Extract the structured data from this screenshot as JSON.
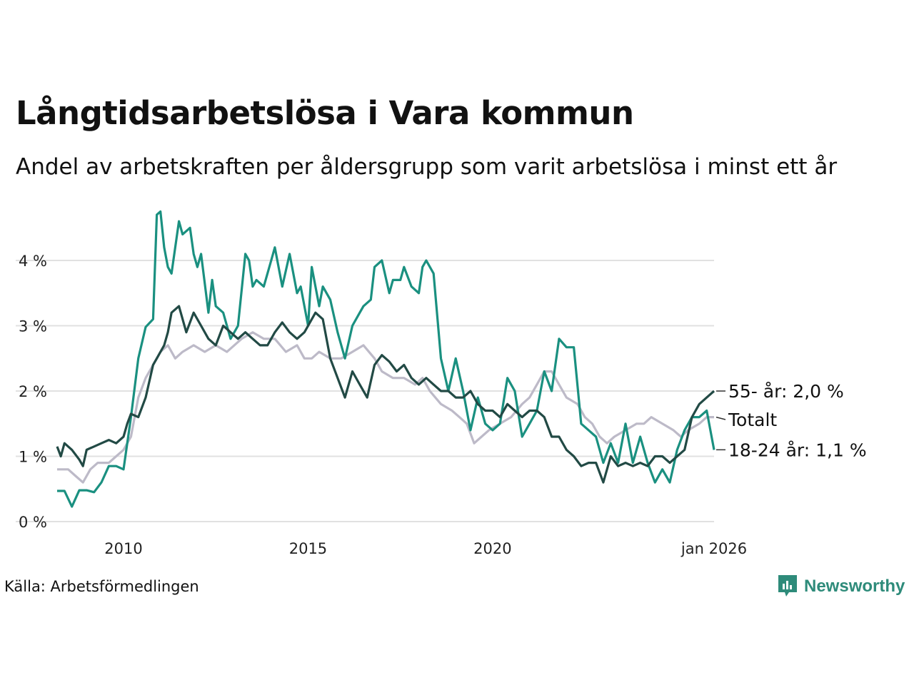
{
  "header": {
    "title": "Långtidsarbetslösa i Vara kommun",
    "subtitle": "Andel av arbetskraften per åldersgrupp som varit arbetslösa i minst ett år"
  },
  "footer": {
    "source": "Källa: Arbetsförmedlingen",
    "brand": "Newsworthy",
    "brand_color": "#2e8b7a"
  },
  "chart_data": {
    "type": "line",
    "title": "Långtidsarbetslösa i Vara kommun",
    "xlabel": "",
    "ylabel": "",
    "xlim": [
      2008.2,
      2026.0
    ],
    "ylim": [
      0,
      4.6
    ],
    "y_ticks": [
      {
        "value": 0,
        "label": "0 %"
      },
      {
        "value": 1,
        "label": "1 %"
      },
      {
        "value": 2,
        "label": "2 %"
      },
      {
        "value": 3,
        "label": "3 %"
      },
      {
        "value": 4,
        "label": "4 %"
      }
    ],
    "x_ticks": [
      {
        "value": 2010,
        "label": "2010"
      },
      {
        "value": 2015,
        "label": "2015"
      },
      {
        "value": 2020,
        "label": "2020"
      },
      {
        "value": 2026,
        "label": "jan 2026"
      }
    ],
    "grid": "horizontal",
    "series": [
      {
        "name": "Totalt",
        "end_label": "Totalt",
        "color": "#bdbac8",
        "points": [
          [
            2008.2,
            0.8
          ],
          [
            2008.5,
            0.8
          ],
          [
            2008.7,
            0.7
          ],
          [
            2008.9,
            0.6
          ],
          [
            2009.1,
            0.8
          ],
          [
            2009.3,
            0.9
          ],
          [
            2009.6,
            0.9
          ],
          [
            2009.8,
            1.0
          ],
          [
            2010.0,
            1.1
          ],
          [
            2010.2,
            1.3
          ],
          [
            2010.4,
            1.9
          ],
          [
            2010.6,
            2.2
          ],
          [
            2010.8,
            2.4
          ],
          [
            2011.0,
            2.6
          ],
          [
            2011.2,
            2.7
          ],
          [
            2011.4,
            2.5
          ],
          [
            2011.6,
            2.6
          ],
          [
            2011.9,
            2.7
          ],
          [
            2012.2,
            2.6
          ],
          [
            2012.5,
            2.7
          ],
          [
            2012.8,
            2.6
          ],
          [
            2013.2,
            2.8
          ],
          [
            2013.5,
            2.9
          ],
          [
            2013.8,
            2.8
          ],
          [
            2014.1,
            2.8
          ],
          [
            2014.4,
            2.6
          ],
          [
            2014.7,
            2.7
          ],
          [
            2014.9,
            2.5
          ],
          [
            2015.1,
            2.5
          ],
          [
            2015.3,
            2.6
          ],
          [
            2015.6,
            2.5
          ],
          [
            2015.9,
            2.5
          ],
          [
            2016.2,
            2.6
          ],
          [
            2016.5,
            2.7
          ],
          [
            2016.8,
            2.5
          ],
          [
            2017.0,
            2.3
          ],
          [
            2017.3,
            2.2
          ],
          [
            2017.6,
            2.2
          ],
          [
            2017.9,
            2.1
          ],
          [
            2018.1,
            2.2
          ],
          [
            2018.3,
            2.0
          ],
          [
            2018.6,
            1.8
          ],
          [
            2018.9,
            1.7
          ],
          [
            2019.1,
            1.6
          ],
          [
            2019.3,
            1.5
          ],
          [
            2019.5,
            1.2
          ],
          [
            2019.7,
            1.3
          ],
          [
            2019.9,
            1.4
          ],
          [
            2020.2,
            1.5
          ],
          [
            2020.5,
            1.6
          ],
          [
            2020.8,
            1.8
          ],
          [
            2021.0,
            1.9
          ],
          [
            2021.2,
            2.1
          ],
          [
            2021.4,
            2.3
          ],
          [
            2021.6,
            2.3
          ],
          [
            2021.8,
            2.1
          ],
          [
            2022.0,
            1.9
          ],
          [
            2022.3,
            1.8
          ],
          [
            2022.5,
            1.6
          ],
          [
            2022.7,
            1.5
          ],
          [
            2022.9,
            1.3
          ],
          [
            2023.1,
            1.2
          ],
          [
            2023.3,
            1.3
          ],
          [
            2023.6,
            1.4
          ],
          [
            2023.9,
            1.5
          ],
          [
            2024.1,
            1.5
          ],
          [
            2024.3,
            1.6
          ],
          [
            2024.6,
            1.5
          ],
          [
            2024.9,
            1.4
          ],
          [
            2025.1,
            1.3
          ],
          [
            2025.3,
            1.4
          ],
          [
            2025.6,
            1.5
          ],
          [
            2025.8,
            1.6
          ],
          [
            2026.0,
            1.6
          ]
        ]
      },
      {
        "name": "18-24 år",
        "end_label": "18-24 år: 1,1 %",
        "color": "#1a9080",
        "points": [
          [
            2008.2,
            0.47
          ],
          [
            2008.4,
            0.47
          ],
          [
            2008.6,
            0.23
          ],
          [
            2008.8,
            0.48
          ],
          [
            2009.0,
            0.48
          ],
          [
            2009.2,
            0.45
          ],
          [
            2009.4,
            0.6
          ],
          [
            2009.6,
            0.85
          ],
          [
            2009.8,
            0.85
          ],
          [
            2010.0,
            0.8
          ],
          [
            2010.2,
            1.6
          ],
          [
            2010.4,
            2.5
          ],
          [
            2010.6,
            2.98
          ],
          [
            2010.8,
            3.1
          ],
          [
            2010.9,
            4.7
          ],
          [
            2011.0,
            4.75
          ],
          [
            2011.1,
            4.2
          ],
          [
            2011.2,
            3.9
          ],
          [
            2011.3,
            3.8
          ],
          [
            2011.5,
            4.6
          ],
          [
            2011.6,
            4.4
          ],
          [
            2011.8,
            4.5
          ],
          [
            2011.9,
            4.1
          ],
          [
            2012.0,
            3.9
          ],
          [
            2012.1,
            4.1
          ],
          [
            2012.3,
            3.2
          ],
          [
            2012.4,
            3.7
          ],
          [
            2012.5,
            3.3
          ],
          [
            2012.7,
            3.2
          ],
          [
            2012.9,
            2.8
          ],
          [
            2013.1,
            3.0
          ],
          [
            2013.3,
            4.1
          ],
          [
            2013.4,
            4.0
          ],
          [
            2013.5,
            3.6
          ],
          [
            2013.6,
            3.7
          ],
          [
            2013.8,
            3.6
          ],
          [
            2014.0,
            4.0
          ],
          [
            2014.1,
            4.2
          ],
          [
            2014.3,
            3.6
          ],
          [
            2014.5,
            4.1
          ],
          [
            2014.7,
            3.5
          ],
          [
            2014.8,
            3.6
          ],
          [
            2015.0,
            3.0
          ],
          [
            2015.1,
            3.9
          ],
          [
            2015.3,
            3.3
          ],
          [
            2015.4,
            3.6
          ],
          [
            2015.6,
            3.4
          ],
          [
            2015.8,
            2.9
          ],
          [
            2016.0,
            2.5
          ],
          [
            2016.2,
            3.0
          ],
          [
            2016.4,
            3.2
          ],
          [
            2016.5,
            3.3
          ],
          [
            2016.7,
            3.4
          ],
          [
            2016.8,
            3.9
          ],
          [
            2017.0,
            4.0
          ],
          [
            2017.2,
            3.5
          ],
          [
            2017.3,
            3.7
          ],
          [
            2017.5,
            3.7
          ],
          [
            2017.6,
            3.9
          ],
          [
            2017.8,
            3.6
          ],
          [
            2018.0,
            3.5
          ],
          [
            2018.1,
            3.9
          ],
          [
            2018.2,
            4.0
          ],
          [
            2018.4,
            3.8
          ],
          [
            2018.6,
            2.5
          ],
          [
            2018.8,
            2.0
          ],
          [
            2019.0,
            2.5
          ],
          [
            2019.2,
            2.0
          ],
          [
            2019.4,
            1.4
          ],
          [
            2019.6,
            1.9
          ],
          [
            2019.8,
            1.5
          ],
          [
            2020.0,
            1.4
          ],
          [
            2020.2,
            1.5
          ],
          [
            2020.4,
            2.2
          ],
          [
            2020.6,
            2.0
          ],
          [
            2020.8,
            1.3
          ],
          [
            2021.0,
            1.5
          ],
          [
            2021.2,
            1.7
          ],
          [
            2021.4,
            2.3
          ],
          [
            2021.6,
            2.0
          ],
          [
            2021.8,
            2.8
          ],
          [
            2022.0,
            2.67
          ],
          [
            2022.2,
            2.67
          ],
          [
            2022.4,
            1.5
          ],
          [
            2022.6,
            1.4
          ],
          [
            2022.8,
            1.3
          ],
          [
            2023.0,
            0.9
          ],
          [
            2023.2,
            1.2
          ],
          [
            2023.4,
            0.9
          ],
          [
            2023.6,
            1.5
          ],
          [
            2023.8,
            0.9
          ],
          [
            2024.0,
            1.3
          ],
          [
            2024.2,
            0.9
          ],
          [
            2024.4,
            0.6
          ],
          [
            2024.6,
            0.8
          ],
          [
            2024.8,
            0.6
          ],
          [
            2025.0,
            1.1
          ],
          [
            2025.2,
            1.4
          ],
          [
            2025.4,
            1.6
          ],
          [
            2025.6,
            1.6
          ],
          [
            2025.8,
            1.7
          ],
          [
            2026.0,
            1.1
          ]
        ]
      },
      {
        "name": "55- år",
        "end_label": "55- år: 2,0 %",
        "color": "#224a45",
        "points": [
          [
            2008.2,
            1.15
          ],
          [
            2008.3,
            1.0
          ],
          [
            2008.4,
            1.2
          ],
          [
            2008.6,
            1.1
          ],
          [
            2008.8,
            0.95
          ],
          [
            2008.9,
            0.85
          ],
          [
            2009.0,
            1.1
          ],
          [
            2009.2,
            1.15
          ],
          [
            2009.4,
            1.2
          ],
          [
            2009.6,
            1.25
          ],
          [
            2009.8,
            1.2
          ],
          [
            2010.0,
            1.3
          ],
          [
            2010.1,
            1.5
          ],
          [
            2010.2,
            1.65
          ],
          [
            2010.4,
            1.6
          ],
          [
            2010.6,
            1.9
          ],
          [
            2010.8,
            2.4
          ],
          [
            2010.9,
            2.5
          ],
          [
            2011.1,
            2.7
          ],
          [
            2011.2,
            2.9
          ],
          [
            2011.3,
            3.2
          ],
          [
            2011.5,
            3.3
          ],
          [
            2011.7,
            2.9
          ],
          [
            2011.9,
            3.2
          ],
          [
            2012.1,
            3.0
          ],
          [
            2012.3,
            2.8
          ],
          [
            2012.5,
            2.7
          ],
          [
            2012.7,
            3.0
          ],
          [
            2012.9,
            2.9
          ],
          [
            2013.1,
            2.8
          ],
          [
            2013.3,
            2.9
          ],
          [
            2013.5,
            2.8
          ],
          [
            2013.7,
            2.7
          ],
          [
            2013.9,
            2.7
          ],
          [
            2014.1,
            2.9
          ],
          [
            2014.3,
            3.05
          ],
          [
            2014.5,
            2.9
          ],
          [
            2014.7,
            2.8
          ],
          [
            2014.9,
            2.9
          ],
          [
            2015.0,
            3.0
          ],
          [
            2015.2,
            3.2
          ],
          [
            2015.4,
            3.1
          ],
          [
            2015.6,
            2.5
          ],
          [
            2015.8,
            2.2
          ],
          [
            2016.0,
            1.9
          ],
          [
            2016.2,
            2.3
          ],
          [
            2016.4,
            2.1
          ],
          [
            2016.6,
            1.9
          ],
          [
            2016.8,
            2.4
          ],
          [
            2017.0,
            2.55
          ],
          [
            2017.2,
            2.45
          ],
          [
            2017.4,
            2.3
          ],
          [
            2017.6,
            2.4
          ],
          [
            2017.8,
            2.2
          ],
          [
            2018.0,
            2.1
          ],
          [
            2018.2,
            2.2
          ],
          [
            2018.4,
            2.1
          ],
          [
            2018.6,
            2.0
          ],
          [
            2018.8,
            2.0
          ],
          [
            2019.0,
            1.9
          ],
          [
            2019.2,
            1.9
          ],
          [
            2019.4,
            2.0
          ],
          [
            2019.6,
            1.8
          ],
          [
            2019.8,
            1.7
          ],
          [
            2020.0,
            1.7
          ],
          [
            2020.2,
            1.6
          ],
          [
            2020.4,
            1.8
          ],
          [
            2020.6,
            1.7
          ],
          [
            2020.8,
            1.6
          ],
          [
            2021.0,
            1.7
          ],
          [
            2021.2,
            1.7
          ],
          [
            2021.4,
            1.6
          ],
          [
            2021.6,
            1.3
          ],
          [
            2021.8,
            1.3
          ],
          [
            2022.0,
            1.1
          ],
          [
            2022.2,
            1.0
          ],
          [
            2022.4,
            0.85
          ],
          [
            2022.6,
            0.9
          ],
          [
            2022.8,
            0.9
          ],
          [
            2023.0,
            0.6
          ],
          [
            2023.2,
            1.0
          ],
          [
            2023.4,
            0.85
          ],
          [
            2023.6,
            0.9
          ],
          [
            2023.8,
            0.85
          ],
          [
            2024.0,
            0.9
          ],
          [
            2024.2,
            0.85
          ],
          [
            2024.4,
            1.0
          ],
          [
            2024.6,
            1.0
          ],
          [
            2024.8,
            0.9
          ],
          [
            2025.0,
            1.0
          ],
          [
            2025.2,
            1.1
          ],
          [
            2025.4,
            1.6
          ],
          [
            2025.6,
            1.8
          ],
          [
            2025.8,
            1.9
          ],
          [
            2026.0,
            2.0
          ]
        ]
      }
    ]
  }
}
